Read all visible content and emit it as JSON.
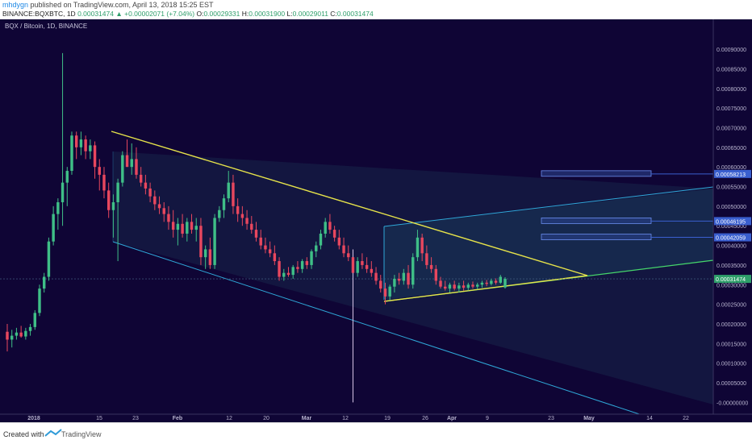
{
  "header": {
    "user": "mhdygn",
    "published": "published on TradingView.com, April 13, 2018 15:25 EST",
    "symbol": "BINANCE:BQXBTC, 1D",
    "last": "0.00031474",
    "change": "▲ +0.00002071 (+7.04%)",
    "o_label": "O:",
    "o": "0.00029331",
    "h_label": "H:",
    "h": "0.00031900",
    "l_label": "L:",
    "l": "0.00029011",
    "c_label": "C:",
    "c": "0.00031474"
  },
  "footer": {
    "created_with": "Created with",
    "brand": "TradingView",
    "icon": "tradingview-logo-icon"
  },
  "colors": {
    "background": "#0f0535",
    "up": "#3fbf87",
    "down": "#e8475e",
    "trend_yellow": "#e6e34a",
    "channel_cyan": "#2fa8d8",
    "green_line": "#45d66b",
    "label_blue": "#3a5fcf"
  },
  "chart_data": {
    "type": "candlestick",
    "title": "BQX / Bitcoin, 1D, BINANCE",
    "x_ticks": [
      "2018",
      "15",
      "23",
      "Feb",
      "12",
      "20",
      "Mar",
      "12",
      "19",
      "26",
      "Apr",
      "9",
      "23",
      "May",
      "14",
      "22"
    ],
    "y_ticks": [
      "0.00090000",
      "0.00085000",
      "0.00080000",
      "0.00075000",
      "0.00070000",
      "0.00065000",
      "0.00060000",
      "0.00055000",
      "0.00050000",
      "0.00045000",
      "0.00040000",
      "0.00035000",
      "0.00030000",
      "0.00025000",
      "0.00020000",
      "0.00015000",
      "0.00010000",
      "0.00005000",
      "-0.00000000"
    ],
    "ylim": [
      -3e-05,
      0.000935
    ],
    "price_labels": [
      {
        "value": 0.00058213,
        "text": "0.00058213"
      },
      {
        "value": 0.00046195,
        "text": "0.00046195"
      },
      {
        "value": 0.00042059,
        "text": "0.00042059"
      },
      {
        "value": 0.00031474,
        "text": "0.00031474"
      }
    ],
    "candles": [
      {
        "o": 0.00018,
        "h": 0.0002,
        "l": 0.00013,
        "c": 0.00016
      },
      {
        "o": 0.00016,
        "h": 0.000185,
        "l": 0.00014,
        "c": 0.00017
      },
      {
        "o": 0.00017,
        "h": 0.00019,
        "l": 0.00016,
        "c": 0.000178
      },
      {
        "o": 0.000178,
        "h": 0.000195,
        "l": 0.000165,
        "c": 0.000168
      },
      {
        "o": 0.000168,
        "h": 0.00019,
        "l": 0.00016,
        "c": 0.000182
      },
      {
        "o": 0.000182,
        "h": 0.0002,
        "l": 0.00017,
        "c": 0.000192
      },
      {
        "o": 0.000192,
        "h": 0.000235,
        "l": 0.000185,
        "c": 0.000228
      },
      {
        "o": 0.000228,
        "h": 0.0003,
        "l": 0.00022,
        "c": 0.00029
      },
      {
        "o": 0.00029,
        "h": 0.00033,
        "l": 0.00028,
        "c": 0.00032
      },
      {
        "o": 0.00032,
        "h": 0.00042,
        "l": 0.00031,
        "c": 0.00041
      },
      {
        "o": 0.00041,
        "h": 0.0005,
        "l": 0.0004,
        "c": 0.00048
      },
      {
        "o": 0.00048,
        "h": 0.00052,
        "l": 0.00044,
        "c": 0.00051
      },
      {
        "o": 0.00051,
        "h": 0.00089,
        "l": 0.00045,
        "c": 0.00056
      },
      {
        "o": 0.00056,
        "h": 0.0006,
        "l": 0.0005,
        "c": 0.00059
      },
      {
        "o": 0.00059,
        "h": 0.00069,
        "l": 0.00058,
        "c": 0.00068
      },
      {
        "o": 0.00068,
        "h": 0.00069,
        "l": 0.00062,
        "c": 0.00065
      },
      {
        "o": 0.00065,
        "h": 0.00069,
        "l": 0.00063,
        "c": 0.00067
      },
      {
        "o": 0.00067,
        "h": 0.00068,
        "l": 0.00062,
        "c": 0.00064
      },
      {
        "o": 0.00064,
        "h": 0.00067,
        "l": 0.00062,
        "c": 0.000655
      },
      {
        "o": 0.000655,
        "h": 0.000665,
        "l": 0.00057,
        "c": 0.0006
      },
      {
        "o": 0.0006,
        "h": 0.00062,
        "l": 0.00054,
        "c": 0.00058
      },
      {
        "o": 0.00058,
        "h": 0.0006,
        "l": 0.00052,
        "c": 0.00054
      },
      {
        "o": 0.00054,
        "h": 0.00056,
        "l": 0.00047,
        "c": 0.00049
      },
      {
        "o": 0.00049,
        "h": 0.00053,
        "l": 0.00042,
        "c": 0.00051
      },
      {
        "o": 0.00051,
        "h": 0.00057,
        "l": 0.00036,
        "c": 0.00056
      },
      {
        "o": 0.00056,
        "h": 0.00064,
        "l": 0.00055,
        "c": 0.00063
      },
      {
        "o": 0.00063,
        "h": 0.00067,
        "l": 0.0006,
        "c": 0.0006
      },
      {
        "o": 0.0006,
        "h": 0.00066,
        "l": 0.00058,
        "c": 0.00062
      },
      {
        "o": 0.00062,
        "h": 0.00065,
        "l": 0.00057,
        "c": 0.00058
      },
      {
        "o": 0.00058,
        "h": 0.0006,
        "l": 0.00055,
        "c": 0.00056
      },
      {
        "o": 0.00056,
        "h": 0.00058,
        "l": 0.00053,
        "c": 0.000545
      },
      {
        "o": 0.000545,
        "h": 0.00056,
        "l": 0.00051,
        "c": 0.000525
      },
      {
        "o": 0.000525,
        "h": 0.00054,
        "l": 0.00049,
        "c": 0.000505
      },
      {
        "o": 0.000505,
        "h": 0.000525,
        "l": 0.00048,
        "c": 0.000495
      },
      {
        "o": 0.000495,
        "h": 0.00051,
        "l": 0.00046,
        "c": 0.00048
      },
      {
        "o": 0.00048,
        "h": 0.0005,
        "l": 0.00044,
        "c": 0.00046
      },
      {
        "o": 0.00046,
        "h": 0.00049,
        "l": 0.00042,
        "c": 0.00044
      },
      {
        "o": 0.00044,
        "h": 0.00047,
        "l": 0.0004,
        "c": 0.000455
      },
      {
        "o": 0.000455,
        "h": 0.00048,
        "l": 0.00042,
        "c": 0.00043
      },
      {
        "o": 0.00043,
        "h": 0.00047,
        "l": 0.00041,
        "c": 0.00046
      },
      {
        "o": 0.00046,
        "h": 0.00048,
        "l": 0.00043,
        "c": 0.00044
      },
      {
        "o": 0.00044,
        "h": 0.00047,
        "l": 0.00041,
        "c": 0.00045
      },
      {
        "o": 0.00045,
        "h": 0.00047,
        "l": 0.00035,
        "c": 0.00037
      },
      {
        "o": 0.00037,
        "h": 0.0004,
        "l": 0.00034,
        "c": 0.00039
      },
      {
        "o": 0.00039,
        "h": 0.00042,
        "l": 0.00034,
        "c": 0.00035
      },
      {
        "o": 0.00035,
        "h": 0.00048,
        "l": 0.00034,
        "c": 0.00047
      },
      {
        "o": 0.00047,
        "h": 0.0005,
        "l": 0.00046,
        "c": 0.00049
      },
      {
        "o": 0.00049,
        "h": 0.00053,
        "l": 0.00047,
        "c": 0.00052
      },
      {
        "o": 0.00052,
        "h": 0.00059,
        "l": 0.00051,
        "c": 0.00056
      },
      {
        "o": 0.00056,
        "h": 0.00058,
        "l": 0.00048,
        "c": 0.0005
      },
      {
        "o": 0.0005,
        "h": 0.00052,
        "l": 0.00046,
        "c": 0.00048
      },
      {
        "o": 0.00048,
        "h": 0.0005,
        "l": 0.00045,
        "c": 0.00047
      },
      {
        "o": 0.00047,
        "h": 0.00049,
        "l": 0.00044,
        "c": 0.000455
      },
      {
        "o": 0.000455,
        "h": 0.000475,
        "l": 0.00043,
        "c": 0.00044
      },
      {
        "o": 0.00044,
        "h": 0.00046,
        "l": 0.00041,
        "c": 0.00042
      },
      {
        "o": 0.00042,
        "h": 0.00044,
        "l": 0.00039,
        "c": 0.0004
      },
      {
        "o": 0.0004,
        "h": 0.00042,
        "l": 0.00038,
        "c": 0.00039
      },
      {
        "o": 0.00039,
        "h": 0.00041,
        "l": 0.00037,
        "c": 0.00038
      },
      {
        "o": 0.00038,
        "h": 0.0004,
        "l": 0.00035,
        "c": 0.00036
      },
      {
        "o": 0.00036,
        "h": 0.00037,
        "l": 0.00031,
        "c": 0.00032
      },
      {
        "o": 0.00032,
        "h": 0.00034,
        "l": 0.00031,
        "c": 0.00033
      },
      {
        "o": 0.00033,
        "h": 0.000345,
        "l": 0.00032,
        "c": 0.000325
      },
      {
        "o": 0.000325,
        "h": 0.00035,
        "l": 0.000315,
        "c": 0.000345
      },
      {
        "o": 0.000345,
        "h": 0.00036,
        "l": 0.00033,
        "c": 0.00034
      },
      {
        "o": 0.00034,
        "h": 0.000365,
        "l": 0.00033,
        "c": 0.00036
      },
      {
        "o": 0.00036,
        "h": 0.00037,
        "l": 0.00034,
        "c": 0.00035
      },
      {
        "o": 0.00035,
        "h": 0.00039,
        "l": 0.00034,
        "c": 0.000385
      },
      {
        "o": 0.000385,
        "h": 0.00041,
        "l": 0.00037,
        "c": 0.0004
      },
      {
        "o": 0.0004,
        "h": 0.00044,
        "l": 0.00039,
        "c": 0.00043
      },
      {
        "o": 0.00043,
        "h": 0.00047,
        "l": 0.00042,
        "c": 0.00046
      },
      {
        "o": 0.00046,
        "h": 0.00048,
        "l": 0.00043,
        "c": 0.00044
      },
      {
        "o": 0.00044,
        "h": 0.00045,
        "l": 0.00041,
        "c": 0.00042
      },
      {
        "o": 0.00042,
        "h": 0.00044,
        "l": 0.00039,
        "c": 0.0004
      },
      {
        "o": 0.0004,
        "h": 0.00042,
        "l": 0.00037,
        "c": 0.00038
      },
      {
        "o": 0.00038,
        "h": 0.0004,
        "l": 0.00036,
        "c": 0.00037
      },
      {
        "o": 0.00037,
        "h": 0.00039,
        "l": 0.0,
        "c": 0.00033
      },
      {
        "o": 0.00033,
        "h": 0.00037,
        "l": 0.00032,
        "c": 0.00036
      },
      {
        "o": 0.00036,
        "h": 0.00038,
        "l": 0.00034,
        "c": 0.00035
      },
      {
        "o": 0.00035,
        "h": 0.00037,
        "l": 0.00033,
        "c": 0.00034
      },
      {
        "o": 0.00034,
        "h": 0.00036,
        "l": 0.00032,
        "c": 0.00033
      },
      {
        "o": 0.00033,
        "h": 0.000345,
        "l": 0.0003,
        "c": 0.00031
      },
      {
        "o": 0.00031,
        "h": 0.000325,
        "l": 0.00028,
        "c": 0.00029
      },
      {
        "o": 0.00029,
        "h": 0.000305,
        "l": 0.00025,
        "c": 0.00027
      },
      {
        "o": 0.00027,
        "h": 0.0003,
        "l": 0.00026,
        "c": 0.000295
      },
      {
        "o": 0.000295,
        "h": 0.000325,
        "l": 0.00028,
        "c": 0.000315
      },
      {
        "o": 0.000315,
        "h": 0.00033,
        "l": 0.0003,
        "c": 0.00031
      },
      {
        "o": 0.00031,
        "h": 0.00034,
        "l": 0.0003,
        "c": 0.00033
      },
      {
        "o": 0.00033,
        "h": 0.00035,
        "l": 0.00029,
        "c": 0.0003
      },
      {
        "o": 0.0003,
        "h": 0.00038,
        "l": 0.00029,
        "c": 0.00037
      },
      {
        "o": 0.00037,
        "h": 0.00044,
        "l": 0.00036,
        "c": 0.00042
      },
      {
        "o": 0.00042,
        "h": 0.00043,
        "l": 0.00036,
        "c": 0.00038
      },
      {
        "o": 0.00038,
        "h": 0.0004,
        "l": 0.00034,
        "c": 0.00035
      },
      {
        "o": 0.00035,
        "h": 0.00037,
        "l": 0.00033,
        "c": 0.00034
      },
      {
        "o": 0.00034,
        "h": 0.00035,
        "l": 0.0003,
        "c": 0.00031
      },
      {
        "o": 0.00031,
        "h": 0.00032,
        "l": 0.00029,
        "c": 0.000295
      },
      {
        "o": 0.000295,
        "h": 0.00031,
        "l": 0.000285,
        "c": 0.00029
      },
      {
        "o": 0.00029,
        "h": 0.000305,
        "l": 0.00028,
        "c": 0.0003
      },
      {
        "o": 0.0003,
        "h": 0.00031,
        "l": 0.000285,
        "c": 0.00029
      },
      {
        "o": 0.00029,
        "h": 0.000305,
        "l": 0.00028,
        "c": 0.000298
      },
      {
        "o": 0.000298,
        "h": 0.00031,
        "l": 0.000285,
        "c": 0.000292
      },
      {
        "o": 0.000292,
        "h": 0.000305,
        "l": 0.000285,
        "c": 0.0003
      },
      {
        "o": 0.0003,
        "h": 0.000308,
        "l": 0.00029,
        "c": 0.000295
      },
      {
        "o": 0.000295,
        "h": 0.000305,
        "l": 0.000288,
        "c": 0.0003
      },
      {
        "o": 0.0003,
        "h": 0.00031,
        "l": 0.000292,
        "c": 0.000305
      },
      {
        "o": 0.000305,
        "h": 0.000312,
        "l": 0.000296,
        "c": 0.000302
      },
      {
        "o": 0.000302,
        "h": 0.000315,
        "l": 0.000298,
        "c": 0.00031
      },
      {
        "o": 0.00031,
        "h": 0.000316,
        "l": 0.0003,
        "c": 0.000305
      },
      {
        "o": 0.000305,
        "h": 0.000325,
        "l": 0.000302,
        "c": 0.00032
      },
      {
        "o": 0.000293,
        "h": 0.000319,
        "l": 0.00029,
        "c": 0.00031474
      }
    ]
  }
}
